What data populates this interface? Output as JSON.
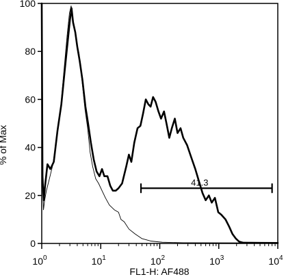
{
  "chart_data": {
    "type": "line",
    "xlabel": "FL1-H: AF488",
    "ylabel": "% of Max",
    "x_scale": "log",
    "xlim": [
      1,
      10000
    ],
    "ylim": [
      0,
      100
    ],
    "x_ticks": [
      {
        "value": 1,
        "base": "10",
        "exp": "0"
      },
      {
        "value": 10,
        "base": "10",
        "exp": "1"
      },
      {
        "value": 100,
        "base": "10",
        "exp": "2"
      },
      {
        "value": 1000,
        "base": "10",
        "exp": "3"
      },
      {
        "value": 10000,
        "base": "10",
        "exp": "4"
      }
    ],
    "y_ticks": [
      {
        "value": 0,
        "label": "0"
      },
      {
        "value": 20,
        "label": "20"
      },
      {
        "value": 40,
        "label": "40"
      },
      {
        "value": 60,
        "label": "60"
      },
      {
        "value": 80,
        "label": "80"
      },
      {
        "value": 100,
        "label": "100"
      }
    ],
    "grid": false,
    "legend": "none",
    "series": [
      {
        "style": "thin",
        "color": "#000000",
        "points": [
          [
            1.0,
            100
          ],
          [
            1.03,
            30
          ],
          [
            1.07,
            14
          ],
          [
            1.12,
            18
          ],
          [
            1.2,
            22
          ],
          [
            1.35,
            27
          ],
          [
            1.55,
            33
          ],
          [
            1.8,
            45
          ],
          [
            2.1,
            57
          ],
          [
            2.4,
            73
          ],
          [
            2.7,
            87
          ],
          [
            2.95,
            96
          ],
          [
            3.15,
            99
          ],
          [
            3.35,
            94
          ],
          [
            3.6,
            90
          ],
          [
            3.9,
            84
          ],
          [
            4.3,
            79
          ],
          [
            4.8,
            68
          ],
          [
            5.4,
            56
          ],
          [
            6.0,
            48
          ],
          [
            6.6,
            38
          ],
          [
            7.3,
            32
          ],
          [
            8.2,
            27
          ],
          [
            9.2,
            25
          ],
          [
            10.5,
            22
          ],
          [
            12.0,
            19
          ],
          [
            14.0,
            16
          ],
          [
            17.0,
            14
          ],
          [
            20.0,
            13
          ],
          [
            22.0,
            10
          ],
          [
            25.0,
            9
          ],
          [
            30.0,
            6
          ],
          [
            38.0,
            4
          ],
          [
            50.0,
            2
          ],
          [
            70.0,
            1
          ],
          [
            110.0,
            0.5
          ],
          [
            250.0,
            0.3
          ],
          [
            10000.0,
            0.2
          ]
        ]
      },
      {
        "style": "thick",
        "color": "#000000",
        "points": [
          [
            1.0,
            100
          ],
          [
            1.03,
            28
          ],
          [
            1.08,
            18
          ],
          [
            1.15,
            25
          ],
          [
            1.25,
            33
          ],
          [
            1.4,
            31
          ],
          [
            1.6,
            34
          ],
          [
            1.85,
            47
          ],
          [
            2.15,
            58
          ],
          [
            2.45,
            72
          ],
          [
            2.75,
            84
          ],
          [
            3.0,
            93
          ],
          [
            3.2,
            98
          ],
          [
            3.4,
            92
          ],
          [
            3.7,
            88
          ],
          [
            4.0,
            82
          ],
          [
            4.4,
            76
          ],
          [
            4.9,
            68
          ],
          [
            5.5,
            57
          ],
          [
            6.1,
            50
          ],
          [
            6.8,
            42
          ],
          [
            7.6,
            35
          ],
          [
            8.5,
            30
          ],
          [
            9.5,
            28
          ],
          [
            10.5,
            31
          ],
          [
            11.5,
            28
          ],
          [
            13.0,
            28
          ],
          [
            14.5,
            24
          ],
          [
            16.0,
            22
          ],
          [
            18.0,
            22
          ],
          [
            20.0,
            23
          ],
          [
            23.0,
            25
          ],
          [
            27.0,
            32
          ],
          [
            30.0,
            37
          ],
          [
            33.0,
            34
          ],
          [
            37.0,
            42
          ],
          [
            42.0,
            48
          ],
          [
            47.0,
            49
          ],
          [
            52.0,
            54
          ],
          [
            58.0,
            60
          ],
          [
            64.0,
            58
          ],
          [
            70.0,
            57
          ],
          [
            77.0,
            61
          ],
          [
            85.0,
            59
          ],
          [
            95.0,
            55
          ],
          [
            105.0,
            52
          ],
          [
            118.0,
            55
          ],
          [
            130.0,
            50
          ],
          [
            145.0,
            44
          ],
          [
            160.0,
            48
          ],
          [
            180.0,
            52
          ],
          [
            200.0,
            46
          ],
          [
            225.0,
            48
          ],
          [
            250.0,
            44
          ],
          [
            290.0,
            41
          ],
          [
            340.0,
            36
          ],
          [
            400.0,
            31
          ],
          [
            460.0,
            26
          ],
          [
            530.0,
            21
          ],
          [
            600.0,
            18
          ],
          [
            680.0,
            20
          ],
          [
            760.0,
            17
          ],
          [
            860.0,
            19
          ],
          [
            980.0,
            13
          ],
          [
            1100.0,
            12
          ],
          [
            1300.0,
            10
          ],
          [
            1500.0,
            7
          ],
          [
            1700.0,
            4
          ],
          [
            1950.0,
            2
          ],
          [
            2200.0,
            0.8
          ],
          [
            2600.0,
            0.3
          ],
          [
            10000.0,
            0.2
          ]
        ]
      }
    ],
    "gate": {
      "x_start": 48,
      "x_end": 8000,
      "y": 23,
      "label": "41.3"
    }
  }
}
